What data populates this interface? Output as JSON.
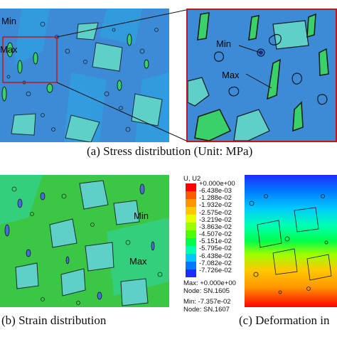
{
  "captions": {
    "a": "(a) Stress distribution (Unit: MPa)",
    "b": "(b) Strain distribution",
    "c": "(c) Deformation in"
  },
  "labels": {
    "panel_a_min": "Min",
    "panel_a_max": "Max",
    "zoom_min": "Min",
    "zoom_max": "Max",
    "panel_b_min": "Min",
    "panel_b_max": "Max"
  },
  "legend": {
    "title": "U, U2",
    "values": [
      "+0.000e+00",
      "-6.438e-03",
      "-1.288e-02",
      "-1.932e-02",
      "-2.575e-02",
      "-3.219e-02",
      "-3.863e-02",
      "-4.507e-02",
      "-5.151e-02",
      "-5.795e-02",
      "-6.438e-02",
      "-7.082e-02",
      "-7.726e-02"
    ],
    "colors": [
      "#ff0000",
      "#ff5a00",
      "#ff9600",
      "#ffc800",
      "#e6ff00",
      "#9cff00",
      "#4cff00",
      "#00ff4c",
      "#00ffb4",
      "#00c8ff",
      "#0078ff",
      "#1e2dff"
    ],
    "max_line": "Max: +0.000e+00",
    "max_node": "Node: SN.1605",
    "min_line": "Min: -7.357e-02",
    "min_node": "Node: SN.1607"
  }
}
